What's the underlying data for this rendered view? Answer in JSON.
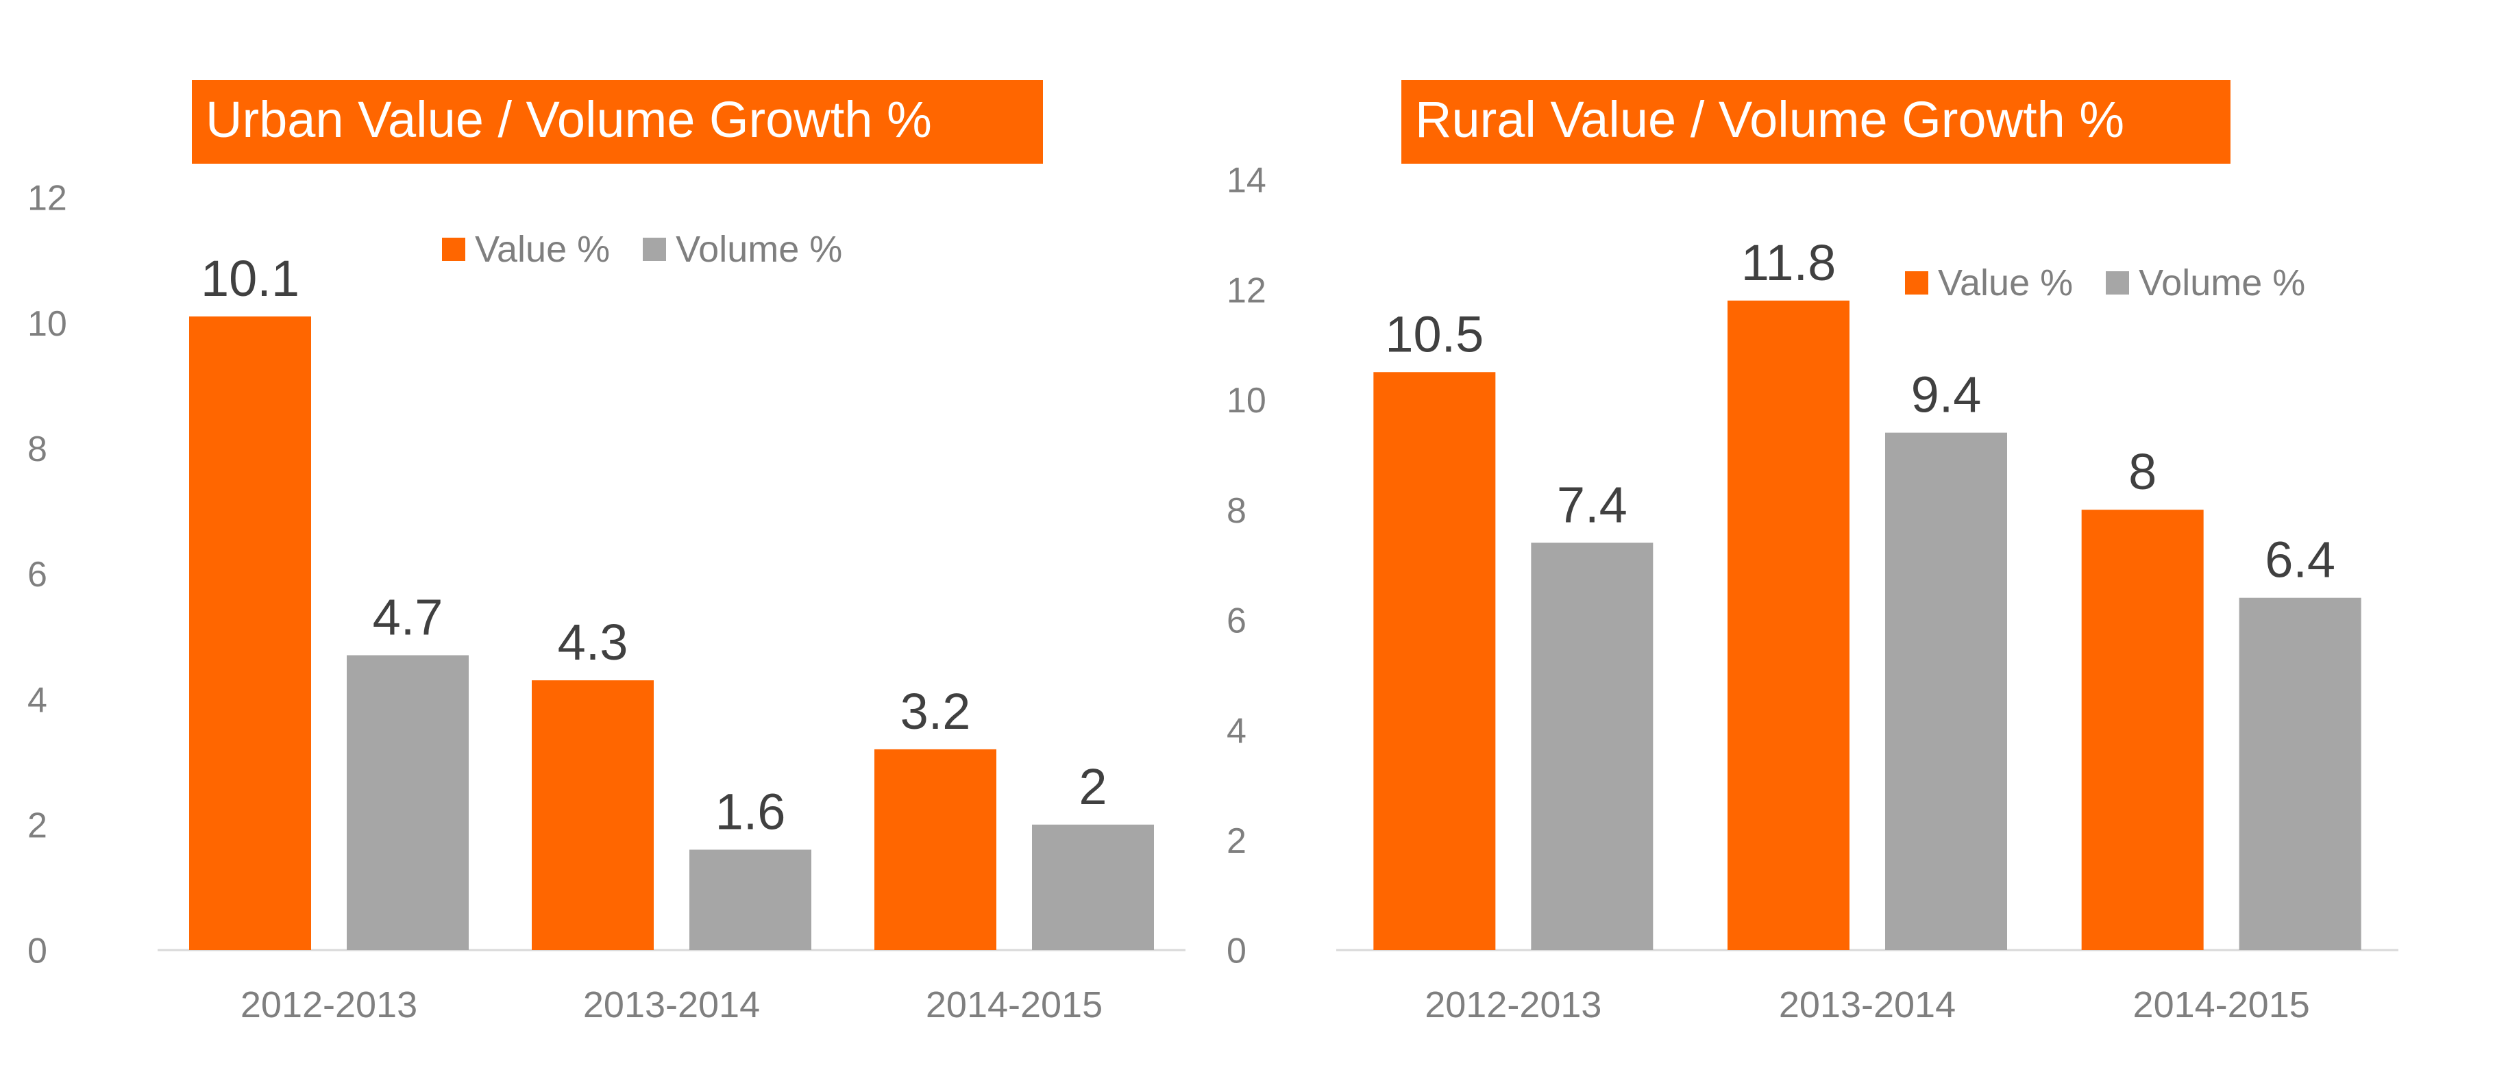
{
  "colors": {
    "value": "#ff6600",
    "volume": "#a6a6a6",
    "axis_text": "#7f7f7f",
    "label_text": "#404040",
    "axis_line": "#d9d9d9"
  },
  "chart_data": [
    {
      "type": "bar",
      "title": "Urban Value / Volume  Growth %",
      "categories": [
        "2012-2013",
        "2013-2014",
        "2014-2015"
      ],
      "series": [
        {
          "name": "Value %",
          "values": [
            10.1,
            4.3,
            3.2
          ]
        },
        {
          "name": "Volume %",
          "values": [
            4.7,
            1.6,
            2
          ]
        }
      ],
      "ylim": [
        0,
        12
      ],
      "yticks": [
        0,
        2,
        4,
        6,
        8,
        10,
        12
      ],
      "xlabel": "",
      "ylabel": "",
      "grid": false,
      "legend": "top-center",
      "data_labels": true
    },
    {
      "type": "bar",
      "title": "Rural Value / Volume Growth %",
      "categories": [
        "2012-2013",
        "2013-2014",
        "2014-2015"
      ],
      "series": [
        {
          "name": "Value %",
          "values": [
            10.5,
            11.8,
            8
          ]
        },
        {
          "name": "Volume %",
          "values": [
            7.4,
            9.4,
            6.4
          ]
        }
      ],
      "ylim": [
        0,
        14
      ],
      "yticks": [
        0,
        2,
        4,
        6,
        8,
        10,
        12,
        14
      ],
      "xlabel": "",
      "ylabel": "",
      "grid": false,
      "legend": "top-right",
      "data_labels": true
    }
  ]
}
